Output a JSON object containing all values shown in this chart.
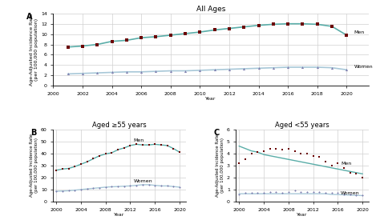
{
  "years_A": [
    2001,
    2002,
    2003,
    2004,
    2005,
    2006,
    2007,
    2008,
    2009,
    2010,
    2011,
    2012,
    2013,
    2014,
    2015,
    2016,
    2017,
    2018,
    2019,
    2020
  ],
  "A_men_line": [
    7.5,
    7.7,
    8.0,
    8.6,
    8.8,
    9.3,
    9.5,
    9.8,
    10.1,
    10.4,
    10.8,
    11.1,
    11.4,
    11.7,
    11.9,
    12.0,
    12.0,
    11.9,
    11.5,
    9.8
  ],
  "A_men_dots": [
    7.5,
    7.7,
    8.0,
    8.6,
    8.8,
    9.3,
    9.5,
    9.8,
    10.1,
    10.4,
    10.8,
    11.1,
    11.4,
    11.7,
    11.9,
    12.0,
    12.0,
    11.9,
    11.5,
    9.8
  ],
  "A_women_line": [
    2.3,
    2.4,
    2.5,
    2.6,
    2.7,
    2.7,
    2.8,
    2.9,
    2.9,
    3.0,
    3.1,
    3.2,
    3.3,
    3.4,
    3.5,
    3.6,
    3.6,
    3.6,
    3.5,
    3.1
  ],
  "A_women_dots": [
    2.3,
    2.4,
    2.5,
    2.6,
    2.7,
    2.7,
    2.8,
    2.9,
    2.9,
    3.0,
    3.1,
    3.2,
    3.3,
    3.4,
    3.5,
    3.6,
    3.6,
    3.6,
    3.5,
    3.1
  ],
  "years_B": [
    2000,
    2001,
    2002,
    2003,
    2004,
    2005,
    2006,
    2007,
    2008,
    2009,
    2010,
    2011,
    2012,
    2013,
    2014,
    2015,
    2016,
    2017,
    2018,
    2019,
    2020
  ],
  "B_men_line": [
    26.0,
    27.0,
    27.5,
    29.0,
    31.0,
    33.0,
    35.5,
    38.0,
    39.5,
    40.5,
    43.0,
    44.5,
    46.5,
    47.5,
    47.0,
    47.0,
    47.5,
    47.0,
    46.5,
    44.0,
    41.0
  ],
  "B_men_dots": [
    26.0,
    27.0,
    27.5,
    29.0,
    31.0,
    33.0,
    35.5,
    38.0,
    39.5,
    40.5,
    43.0,
    44.5,
    46.5,
    47.5,
    47.0,
    47.0,
    47.5,
    47.0,
    46.5,
    44.0,
    41.0
  ],
  "B_women_line": [
    8.5,
    8.8,
    9.0,
    9.5,
    10.0,
    10.5,
    11.0,
    11.5,
    12.0,
    12.3,
    12.5,
    12.8,
    13.0,
    13.5,
    14.0,
    14.0,
    13.5,
    13.0,
    13.0,
    12.5,
    12.0
  ],
  "B_women_dots": [
    8.5,
    8.8,
    9.0,
    9.5,
    10.0,
    10.5,
    11.0,
    11.5,
    12.0,
    12.3,
    12.5,
    12.8,
    13.0,
    13.5,
    14.0,
    14.0,
    13.5,
    13.0,
    13.0,
    12.5,
    12.0
  ],
  "years_C": [
    2000,
    2001,
    2002,
    2003,
    2004,
    2005,
    2006,
    2007,
    2008,
    2009,
    2010,
    2011,
    2012,
    2013,
    2014,
    2015,
    2016,
    2017,
    2018,
    2019,
    2020
  ],
  "C_men_line": [
    4.6,
    4.4,
    4.2,
    4.1,
    3.9,
    3.8,
    3.7,
    3.6,
    3.5,
    3.4,
    3.3,
    3.2,
    3.1,
    3.0,
    2.9,
    2.8,
    2.7,
    2.6,
    2.5,
    2.4,
    2.3
  ],
  "C_men_dots": [
    3.2,
    3.5,
    4.0,
    4.1,
    4.2,
    4.4,
    4.4,
    4.3,
    4.4,
    4.2,
    4.0,
    4.0,
    3.8,
    3.7,
    3.3,
    3.0,
    3.2,
    2.8,
    2.4,
    2.3,
    2.0
  ],
  "C_women_line": [
    0.65,
    0.65,
    0.65,
    0.65,
    0.65,
    0.65,
    0.65,
    0.65,
    0.65,
    0.65,
    0.65,
    0.65,
    0.65,
    0.65,
    0.65,
    0.6,
    0.58,
    0.56,
    0.54,
    0.52,
    0.5
  ],
  "C_women_dots": [
    0.6,
    0.7,
    0.7,
    0.7,
    0.7,
    0.8,
    0.8,
    0.7,
    0.8,
    0.9,
    0.8,
    0.8,
    0.8,
    0.8,
    0.7,
    0.7,
    0.7,
    0.6,
    0.6,
    0.5,
    0.5
  ],
  "men_line_color": "#5aada8",
  "men_dot_color": "#6b0000",
  "women_line_color": "#a8c8d8",
  "women_dot_color": "#8080b0",
  "bg_color": "#ffffff",
  "grid_color": "#d0d0d0",
  "title_A": "All Ages",
  "title_B": "Aged ≥55 years",
  "title_C": "Aged <55 years",
  "ylabel": "Age-Adjusted Incidence Rate\n(per 100,000 population)",
  "xlabel": "Year"
}
